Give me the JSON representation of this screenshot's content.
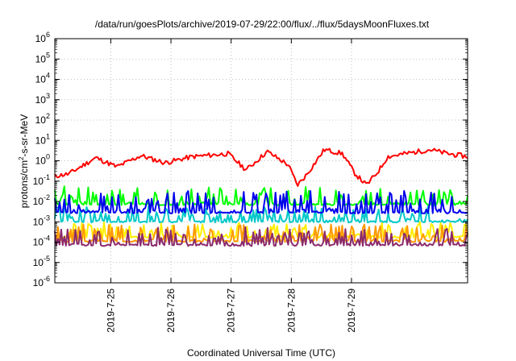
{
  "chart_data": {
    "type": "line",
    "title": "/data/run/goesPlots/archive/2019-07-29/22:00/flux/../flux/5daysMoonFluxes.txt",
    "xlabel": "Coordinated Universal Time (UTC)",
    "ylabel_parts": [
      "protons/cm",
      "2",
      "-s-sr-MeV"
    ],
    "y_scale": "log",
    "ylim_exponent": [
      -6,
      6
    ],
    "y_tick_exponents": [
      -6,
      -5,
      -4,
      -3,
      -2,
      -1,
      0,
      1,
      2,
      3,
      4,
      5,
      6
    ],
    "y_tick_base": "10",
    "x_range_days": [
      -0.93,
      5.93
    ],
    "x_ticks": [
      {
        "label": "2019-7-25",
        "day": 0
      },
      {
        "label": "2019-7-26",
        "day": 1
      },
      {
        "label": "2019-7-27",
        "day": 2
      },
      {
        "label": "2019-7-28",
        "day": 3
      },
      {
        "label": "2019-7-29",
        "day": 4
      }
    ],
    "grid": true,
    "legend": "none",
    "series": [
      {
        "color": "#ff0000",
        "kind": "diurnal",
        "base": -0.35,
        "amp": 0.55,
        "noise": 0.12,
        "seed": 11,
        "key_points": [
          [
            -0.93,
            -0.75
          ],
          [
            -0.7,
            -0.65
          ],
          [
            -0.25,
            0.15
          ],
          [
            0.1,
            -0.3
          ],
          [
            0.5,
            0.25
          ],
          [
            0.9,
            -0.1
          ],
          [
            1.35,
            0.2
          ],
          [
            1.95,
            0.35
          ],
          [
            2.25,
            -0.45
          ],
          [
            2.6,
            0.45
          ],
          [
            2.95,
            -0.2
          ],
          [
            3.1,
            -1.2
          ],
          [
            3.25,
            -0.7
          ],
          [
            3.55,
            0.55
          ],
          [
            3.85,
            0.35
          ],
          [
            4.05,
            -0.6
          ],
          [
            4.25,
            -1.2
          ],
          [
            4.45,
            -0.5
          ],
          [
            4.6,
            0.2
          ],
          [
            5.0,
            0.4
          ],
          [
            5.3,
            0.55
          ],
          [
            5.6,
            0.35
          ],
          [
            5.93,
            0.2
          ]
        ]
      },
      {
        "color": "#00ff00",
        "kind": "spiky",
        "floor": -2.15,
        "spike": 0.7,
        "seed": 23
      },
      {
        "color": "#00c8c8",
        "kind": "spiky",
        "floor": -3.0,
        "spike": 0.6,
        "seed": 37
      },
      {
        "color": "#0000ee",
        "kind": "spiky",
        "floor": -2.55,
        "spike": 0.85,
        "seed": 41
      },
      {
        "color": "#ffee00",
        "kind": "spiky",
        "floor": -3.75,
        "spike": 0.6,
        "seed": 53
      },
      {
        "color": "#ff9900",
        "kind": "spiky",
        "floor": -3.95,
        "spike": 0.65,
        "seed": 67
      },
      {
        "color": "#8b2a6b",
        "kind": "spiky",
        "floor": -4.15,
        "spike": 0.7,
        "seed": 79
      }
    ]
  }
}
